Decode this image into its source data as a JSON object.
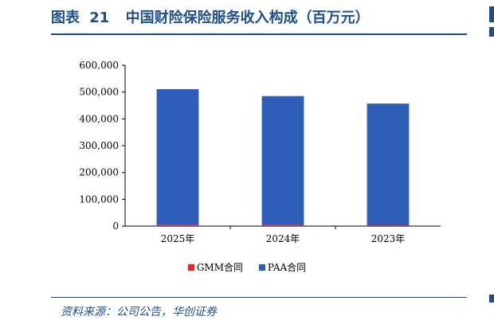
{
  "header": {
    "figure_label": "图表",
    "figure_number": "21",
    "title": "中国财险保险服务收入构成（百万元）"
  },
  "source": "资料来源：公司公告，华创证券",
  "colors": {
    "accent": "#1f4e8c",
    "gmm": "#e8232a",
    "paa": "#2e5eb8"
  },
  "chart_data": {
    "type": "bar",
    "stacked": true,
    "categories": [
      "2025年",
      "2024年",
      "2023年"
    ],
    "series": [
      {
        "name": "GMM合同",
        "values": [
          4000,
          4000,
          3000
        ]
      },
      {
        "name": "PAA合同",
        "values": [
          507000,
          481000,
          454000
        ]
      }
    ],
    "yticks": [
      "0",
      "100,000",
      "200,000",
      "300,000",
      "400,000",
      "500,000",
      "600,000"
    ],
    "ylim": [
      0,
      600000
    ],
    "legend_position": "bottom",
    "grid": false
  }
}
